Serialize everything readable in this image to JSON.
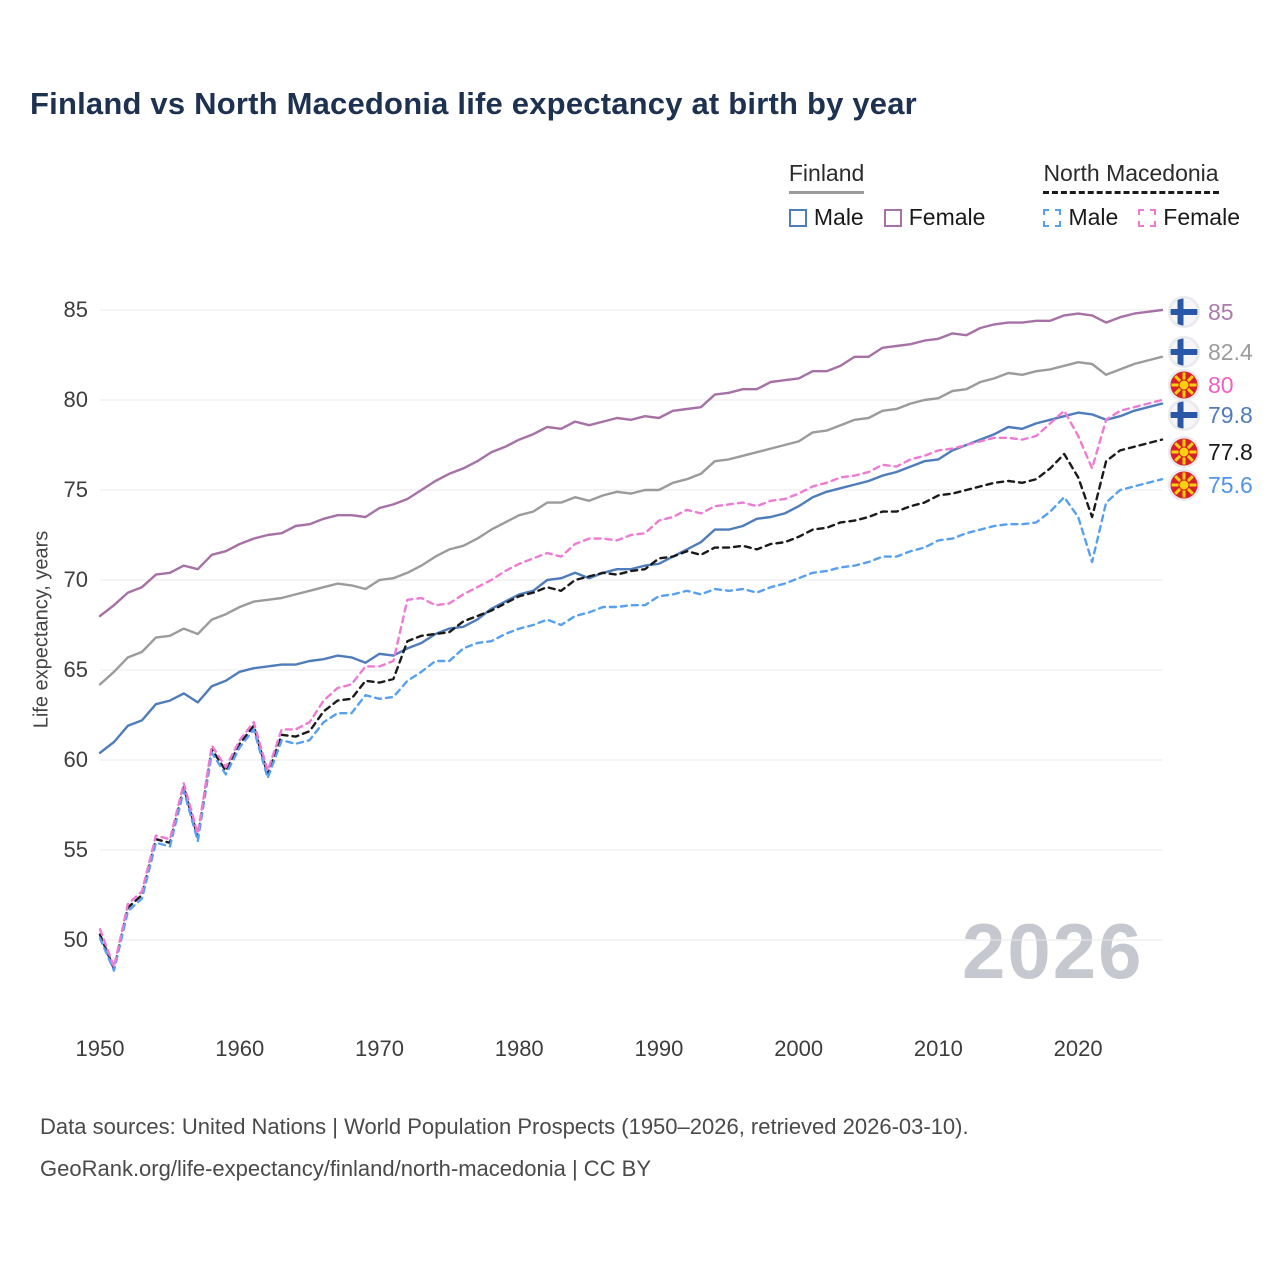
{
  "title": "Finland vs North Macedonia life expectancy at birth by year",
  "legend": {
    "finland": {
      "label": "Finland",
      "male": "Male",
      "female": "Female"
    },
    "north_macedonia": {
      "label": "North Macedonia",
      "male": "Male",
      "female": "Female"
    }
  },
  "watermark": "2026",
  "footer": {
    "line1": "Data sources: United Nations | World Population Prospects (1950–2026, retrieved 2026-03-10).",
    "line2": "GeoRank.org/life-expectancy/finland/north-macedonia | CC BY"
  },
  "chart_data": {
    "type": "line",
    "title": "Finland vs North Macedonia life expectancy at birth by year",
    "xlabel": "",
    "ylabel": "Life expectancy, years",
    "xlim": [
      1950,
      2026
    ],
    "ylim": [
      48,
      86
    ],
    "yticks": [
      50,
      55,
      60,
      65,
      70,
      75,
      80,
      85
    ],
    "xticks": [
      1950,
      1960,
      1970,
      1980,
      1990,
      2000,
      2010,
      2020
    ],
    "grid": "horizontal",
    "legend_position": "top-right",
    "years": [
      1950,
      1951,
      1952,
      1953,
      1954,
      1955,
      1956,
      1957,
      1958,
      1959,
      1960,
      1961,
      1962,
      1963,
      1964,
      1965,
      1966,
      1967,
      1968,
      1969,
      1970,
      1971,
      1972,
      1973,
      1974,
      1975,
      1976,
      1977,
      1978,
      1979,
      1980,
      1981,
      1982,
      1983,
      1984,
      1985,
      1986,
      1987,
      1988,
      1989,
      1990,
      1991,
      1992,
      1993,
      1994,
      1995,
      1996,
      1997,
      1998,
      1999,
      2000,
      2001,
      2002,
      2003,
      2004,
      2005,
      2006,
      2007,
      2008,
      2009,
      2010,
      2011,
      2012,
      2013,
      2014,
      2015,
      2016,
      2017,
      2018,
      2019,
      2020,
      2021,
      2022,
      2023,
      2024,
      2025,
      2026
    ],
    "series": [
      {
        "name": "Finland Total",
        "country": "Finland",
        "sex": "both",
        "style": "solid",
        "color": "#9b9b9b",
        "end_value": 82.4,
        "values": [
          64.2,
          64.9,
          65.7,
          66.0,
          66.8,
          66.9,
          67.3,
          67.0,
          67.8,
          68.1,
          68.5,
          68.8,
          68.9,
          69.0,
          69.2,
          69.4,
          69.6,
          69.8,
          69.7,
          69.5,
          70.0,
          70.1,
          70.4,
          70.8,
          71.3,
          71.7,
          71.9,
          72.3,
          72.8,
          73.2,
          73.6,
          73.8,
          74.3,
          74.3,
          74.6,
          74.4,
          74.7,
          74.9,
          74.8,
          75.0,
          75.0,
          75.4,
          75.6,
          75.9,
          76.6,
          76.7,
          76.9,
          77.1,
          77.3,
          77.5,
          77.7,
          78.2,
          78.3,
          78.6,
          78.9,
          79.0,
          79.4,
          79.5,
          79.8,
          80.0,
          80.1,
          80.5,
          80.6,
          81.0,
          81.2,
          81.5,
          81.4,
          81.6,
          81.7,
          81.9,
          82.1,
          82.0,
          81.4,
          81.7,
          82.0,
          82.2,
          82.4
        ]
      },
      {
        "name": "Finland Female",
        "country": "Finland",
        "sex": "female",
        "style": "solid",
        "color": "#a672a6",
        "end_value": 85.0,
        "values": [
          68.0,
          68.6,
          69.3,
          69.6,
          70.3,
          70.4,
          70.8,
          70.6,
          71.4,
          71.6,
          72.0,
          72.3,
          72.5,
          72.6,
          73.0,
          73.1,
          73.4,
          73.6,
          73.6,
          73.5,
          74.0,
          74.2,
          74.5,
          75.0,
          75.5,
          75.9,
          76.2,
          76.6,
          77.1,
          77.4,
          77.8,
          78.1,
          78.5,
          78.4,
          78.8,
          78.6,
          78.8,
          79.0,
          78.9,
          79.1,
          79.0,
          79.4,
          79.5,
          79.6,
          80.3,
          80.4,
          80.6,
          80.6,
          81.0,
          81.1,
          81.2,
          81.6,
          81.6,
          81.9,
          82.4,
          82.4,
          82.9,
          83.0,
          83.1,
          83.3,
          83.4,
          83.7,
          83.6,
          84.0,
          84.2,
          84.3,
          84.3,
          84.4,
          84.4,
          84.7,
          84.8,
          84.7,
          84.3,
          84.6,
          84.8,
          84.9,
          85.0
        ]
      },
      {
        "name": "Finland Male",
        "country": "Finland",
        "sex": "male",
        "style": "solid",
        "color": "#4f7cba",
        "end_value": 79.8,
        "values": [
          60.4,
          61.0,
          61.9,
          62.2,
          63.1,
          63.3,
          63.7,
          63.2,
          64.1,
          64.4,
          64.9,
          65.1,
          65.2,
          65.3,
          65.3,
          65.5,
          65.6,
          65.8,
          65.7,
          65.4,
          65.9,
          65.8,
          66.2,
          66.5,
          67.0,
          67.3,
          67.4,
          67.8,
          68.4,
          68.8,
          69.2,
          69.4,
          70.0,
          70.1,
          70.4,
          70.1,
          70.4,
          70.6,
          70.6,
          70.8,
          70.9,
          71.3,
          71.7,
          72.1,
          72.8,
          72.8,
          73.0,
          73.4,
          73.5,
          73.7,
          74.1,
          74.6,
          74.9,
          75.1,
          75.3,
          75.5,
          75.8,
          76.0,
          76.3,
          76.6,
          76.7,
          77.2,
          77.5,
          77.8,
          78.1,
          78.5,
          78.4,
          78.7,
          78.9,
          79.1,
          79.3,
          79.2,
          78.9,
          79.1,
          79.4,
          79.6,
          79.8
        ]
      },
      {
        "name": "North Macedonia Total",
        "country": "North Macedonia",
        "sex": "both",
        "style": "dashed",
        "color": "#1a1a1a",
        "end_value": 77.8,
        "values": [
          50.3,
          48.4,
          51.8,
          52.5,
          55.6,
          55.4,
          58.5,
          55.7,
          60.6,
          59.4,
          60.9,
          61.9,
          59.2,
          61.4,
          61.3,
          61.6,
          62.7,
          63.3,
          63.4,
          64.4,
          64.3,
          64.5,
          66.6,
          66.9,
          67.0,
          67.1,
          67.7,
          68.0,
          68.3,
          68.7,
          69.1,
          69.3,
          69.6,
          69.4,
          70.0,
          70.2,
          70.4,
          70.3,
          70.5,
          70.6,
          71.2,
          71.3,
          71.6,
          71.4,
          71.8,
          71.8,
          71.9,
          71.7,
          72.0,
          72.1,
          72.4,
          72.8,
          72.9,
          73.2,
          73.3,
          73.5,
          73.8,
          73.8,
          74.1,
          74.3,
          74.7,
          74.8,
          75.0,
          75.2,
          75.4,
          75.5,
          75.4,
          75.6,
          76.2,
          77.0,
          75.7,
          73.5,
          76.6,
          77.2,
          77.4,
          77.6,
          77.8
        ]
      },
      {
        "name": "North Macedonia Male",
        "country": "North Macedonia",
        "sex": "male",
        "style": "dashed",
        "color": "#57a0f0",
        "end_value": 75.6,
        "values": [
          50.1,
          48.3,
          51.6,
          52.3,
          55.4,
          55.2,
          58.3,
          55.5,
          60.4,
          59.2,
          60.7,
          61.7,
          59.0,
          61.1,
          60.9,
          61.1,
          62.1,
          62.6,
          62.6,
          63.6,
          63.4,
          63.5,
          64.4,
          64.9,
          65.5,
          65.5,
          66.2,
          66.5,
          66.6,
          67.0,
          67.3,
          67.5,
          67.8,
          67.5,
          68.0,
          68.2,
          68.5,
          68.5,
          68.6,
          68.6,
          69.1,
          69.2,
          69.4,
          69.2,
          69.5,
          69.4,
          69.5,
          69.3,
          69.6,
          69.8,
          70.1,
          70.4,
          70.5,
          70.7,
          70.8,
          71.0,
          71.3,
          71.3,
          71.6,
          71.8,
          72.2,
          72.3,
          72.6,
          72.8,
          73.0,
          73.1,
          73.1,
          73.2,
          73.8,
          74.6,
          73.5,
          71.0,
          74.3,
          75.0,
          75.2,
          75.4,
          75.6
        ]
      },
      {
        "name": "North Macedonia Female",
        "country": "North Macedonia",
        "sex": "female",
        "style": "dashed",
        "color": "#ef7ad4",
        "end_value": 80.0,
        "values": [
          50.6,
          48.5,
          52.0,
          52.7,
          55.8,
          55.6,
          58.7,
          55.9,
          60.8,
          59.6,
          61.1,
          62.1,
          59.4,
          61.7,
          61.7,
          62.1,
          63.3,
          64.0,
          64.2,
          65.2,
          65.2,
          65.5,
          68.9,
          69.0,
          68.6,
          68.7,
          69.2,
          69.6,
          70.0,
          70.5,
          70.9,
          71.2,
          71.5,
          71.3,
          72.0,
          72.3,
          72.3,
          72.2,
          72.5,
          72.6,
          73.3,
          73.5,
          73.9,
          73.7,
          74.1,
          74.2,
          74.3,
          74.1,
          74.4,
          74.5,
          74.8,
          75.2,
          75.4,
          75.7,
          75.8,
          76.0,
          76.4,
          76.3,
          76.7,
          76.9,
          77.2,
          77.3,
          77.5,
          77.7,
          77.9,
          77.9,
          77.8,
          78.0,
          78.7,
          79.4,
          78.0,
          76.2,
          78.9,
          79.4,
          79.6,
          79.8,
          80.0
        ]
      }
    ],
    "end_labels": [
      {
        "value": "85",
        "flag": "finland",
        "color": "#a97ba9"
      },
      {
        "value": "82.4",
        "flag": "finland",
        "color": "#9b9b9b"
      },
      {
        "value": "80",
        "flag": "north-macedonia",
        "color": "#ef5fc4"
      },
      {
        "value": "79.8",
        "flag": "finland",
        "color": "#4f7cba"
      },
      {
        "value": "77.8",
        "flag": "north-macedonia",
        "color": "#1a1a1a"
      },
      {
        "value": "75.6",
        "flag": "north-macedonia",
        "color": "#4f94e8"
      }
    ]
  }
}
